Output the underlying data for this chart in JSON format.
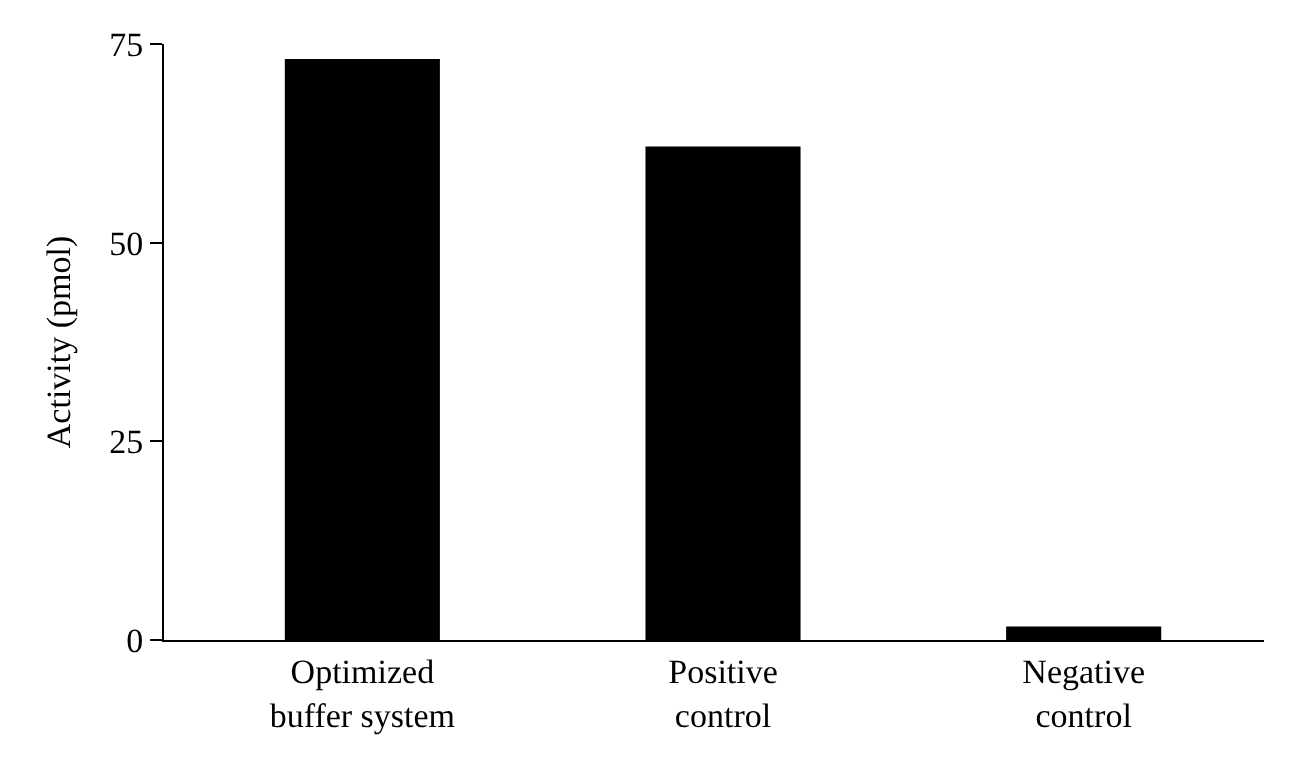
{
  "chart_data": {
    "type": "bar",
    "ylabel": "Activity (pmol)",
    "categories": [
      "Optimized\nbuffer system",
      "Positive\ncontrol",
      "Negative\ncontrol"
    ],
    "values": [
      73.1,
      62.1,
      1.7
    ],
    "color": "#000000",
    "ylim": [
      0,
      75
    ],
    "yticks": [
      0,
      25,
      50,
      75
    ]
  }
}
